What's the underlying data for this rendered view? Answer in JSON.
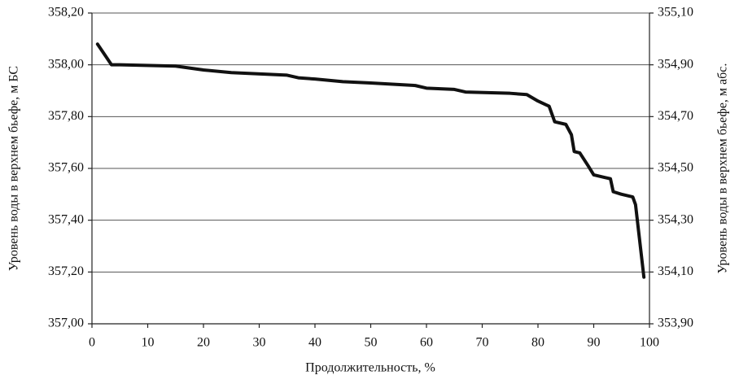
{
  "chart_data": {
    "type": "line",
    "x_label": "Продолжительность, %",
    "y_label": "Уровень воды в верхнем бьефе, м БС",
    "y2_label": "Уровень воды в верхнем бьефе, м  абс.",
    "x": [
      1,
      3.5,
      5,
      15,
      20,
      25,
      35,
      37,
      40,
      45,
      50,
      58,
      60,
      65,
      67,
      75,
      78,
      80,
      82,
      83,
      85,
      86,
      86.5,
      87.5,
      89,
      90,
      92,
      93,
      93.5,
      95,
      97,
      97.5,
      99
    ],
    "series": [
      {
        "color": "#111111",
        "values": [
          358.08,
          358.0,
          358.0,
          357.995,
          357.98,
          357.97,
          357.96,
          357.95,
          357.945,
          357.935,
          357.93,
          357.92,
          357.91,
          357.905,
          357.895,
          357.89,
          357.885,
          357.86,
          357.84,
          357.78,
          357.77,
          357.73,
          357.665,
          357.66,
          357.61,
          357.575,
          357.565,
          357.56,
          357.51,
          357.5,
          357.49,
          357.46,
          357.18
        ]
      }
    ],
    "xlim": [
      0,
      100
    ],
    "xticks": [
      0,
      10,
      20,
      30,
      40,
      50,
      60,
      70,
      80,
      90,
      100
    ],
    "ylim": [
      357.0,
      358.2
    ],
    "yticks": [
      {
        "value": 357.0,
        "label": "357,00"
      },
      {
        "value": 357.2,
        "label": "357,20"
      },
      {
        "value": 357.4,
        "label": "357,40"
      },
      {
        "value": 357.6,
        "label": "357,60"
      },
      {
        "value": 357.8,
        "label": "357,80"
      },
      {
        "value": 358.0,
        "label": "358,00"
      },
      {
        "value": 358.2,
        "label": "358,20"
      }
    ],
    "y2lim": [
      353.9,
      355.1
    ],
    "y2ticks": [
      {
        "value": 353.9,
        "label": "353,90"
      },
      {
        "value": 354.1,
        "label": "354,10"
      },
      {
        "value": 354.3,
        "label": "354,30"
      },
      {
        "value": 354.5,
        "label": "354,50"
      },
      {
        "value": 354.7,
        "label": "354,70"
      },
      {
        "value": 354.9,
        "label": "354,90"
      },
      {
        "value": 355.1,
        "label": "355,10"
      }
    ],
    "grid": true
  }
}
